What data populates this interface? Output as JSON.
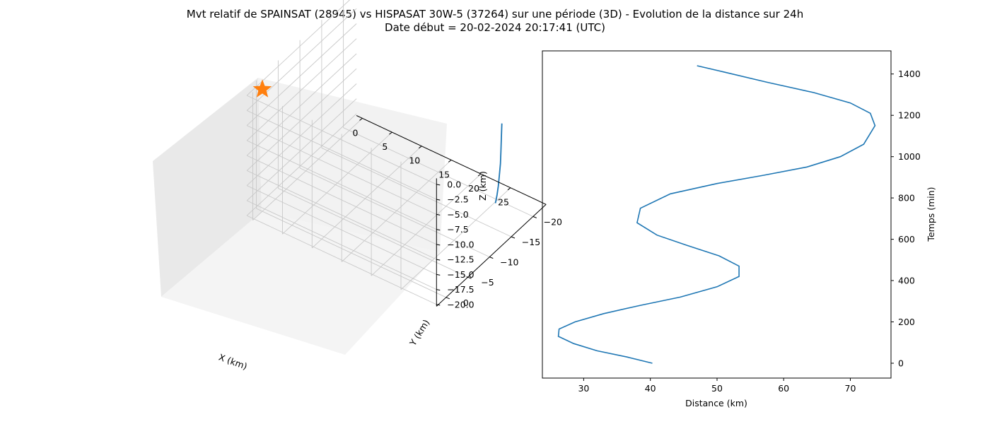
{
  "figure": {
    "title_line1": "Mvt relatif de SPAINSAT (28945) vs HISPASAT 30W-5 (37264) sur une période (3D) - Evolution de la distance sur 24h",
    "title_line2": "Date début = 20-02-2024 20:17:41 (UTC)"
  },
  "colors": {
    "series": "#1f77b4",
    "marker": "#ff7f0e",
    "pane_back": "#f2f2f2",
    "pane_side": "#e9e9e9",
    "pane_floor": "#f4f4f4",
    "grid": "#c8c8c8"
  },
  "chart_data": [
    {
      "type": "line",
      "projection": "3d",
      "title": "",
      "xlabel": "X (km)",
      "ylabel": "Y (km)",
      "zlabel": "Z (km)",
      "xticks": [
        "0",
        "5",
        "10",
        "15",
        "20",
        "25"
      ],
      "yticks": [
        "0",
        "−5",
        "−10",
        "−15",
        "−20"
      ],
      "zticks": [
        "0.0",
        "−2.5",
        "−5.0",
        "−7.5",
        "−10.0",
        "−12.5",
        "−15.0",
        "−17.5",
        "−20.0"
      ],
      "xlim": [
        -1,
        28
      ],
      "ylim": [
        -22,
        2
      ],
      "zlim": [
        -21,
        0.5
      ],
      "grid": true,
      "series": [
        {
          "points": [
            {
              "x": 27.5,
              "y": -17.6,
              "z": -4.8
            },
            {
              "x": 27.2,
              "y": -17.9,
              "z": -7.5
            },
            {
              "x": 26.9,
              "y": -18.2,
              "z": -10.0
            },
            {
              "x": 26.6,
              "y": -18.5,
              "z": -12.5
            },
            {
              "x": 26.2,
              "y": -18.8,
              "z": -14.8
            },
            {
              "x": 25.8,
              "y": -19.1,
              "z": -17.0
            },
            {
              "x": 25.3,
              "y": -19.5,
              "z": -19.0
            },
            {
              "x": 24.8,
              "y": -19.8,
              "z": -20.8
            }
          ]
        }
      ],
      "marker": {
        "shape": "star",
        "x": 0,
        "y": 0,
        "z": 0
      }
    },
    {
      "type": "line",
      "title": "",
      "xlabel": "Distance (km)",
      "ylabel": "Temps (min)",
      "yaxis_position": "right",
      "xticks": [
        30,
        40,
        50,
        60,
        70
      ],
      "yticks": [
        0,
        200,
        400,
        600,
        800,
        1000,
        1200,
        1400
      ],
      "xlim": [
        23.8,
        76.1
      ],
      "ylim": [
        -72,
        1512
      ],
      "grid": false,
      "series": [
        {
          "x": [
            40.3,
            36.5,
            32.0,
            28.5,
            26.2,
            26.3,
            28.7,
            33.0,
            38.5,
            44.5,
            50.0,
            53.3,
            53.3,
            50.3,
            45.5,
            41.0,
            38.0,
            38.5,
            43.0,
            50.0,
            57.0,
            63.5,
            68.5,
            72.0,
            73.7,
            73.0,
            70.0,
            64.5,
            57.5,
            51.0,
            47.0
          ],
          "y": [
            0,
            30,
            60,
            95,
            130,
            165,
            200,
            240,
            280,
            320,
            370,
            420,
            470,
            520,
            570,
            620,
            680,
            750,
            820,
            870,
            910,
            950,
            1000,
            1060,
            1150,
            1210,
            1260,
            1310,
            1360,
            1410,
            1440
          ]
        }
      ]
    }
  ]
}
